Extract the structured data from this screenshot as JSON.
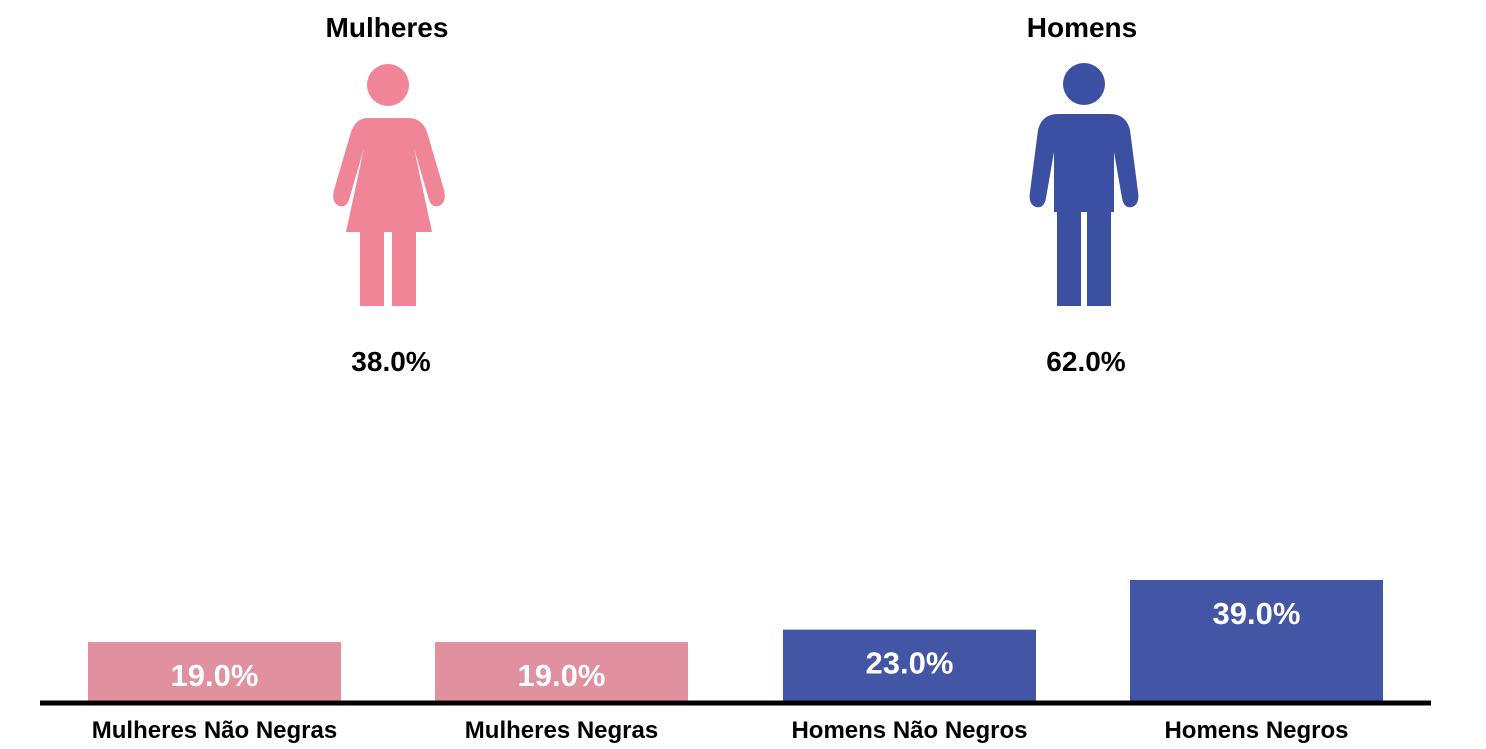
{
  "groups": {
    "women": {
      "label": "Mulheres",
      "value_label": "38.0%",
      "value": 38.0,
      "color": "#f08598",
      "icon": "woman-icon"
    },
    "men": {
      "label": "Homens",
      "value_label": "62.0%",
      "value": 62.0,
      "color": "#3b50a3",
      "icon": "man-icon"
    }
  },
  "chart_data": {
    "type": "bar",
    "categories": [
      "Mulheres Não Negras",
      "Mulheres Negras",
      "Homens Não Negros",
      "Homens Negros"
    ],
    "values": [
      19.0,
      19.0,
      23.0,
      39.0
    ],
    "value_labels": [
      "19.0%",
      "19.0%",
      "23.0%",
      "39.0%"
    ],
    "colors": [
      "#e0909e",
      "#e0909e",
      "#4355a5",
      "#4355a5"
    ],
    "ylim": [
      0,
      39
    ],
    "grid": false,
    "legend": "none",
    "title": "",
    "xlabel": "",
    "ylabel": ""
  }
}
